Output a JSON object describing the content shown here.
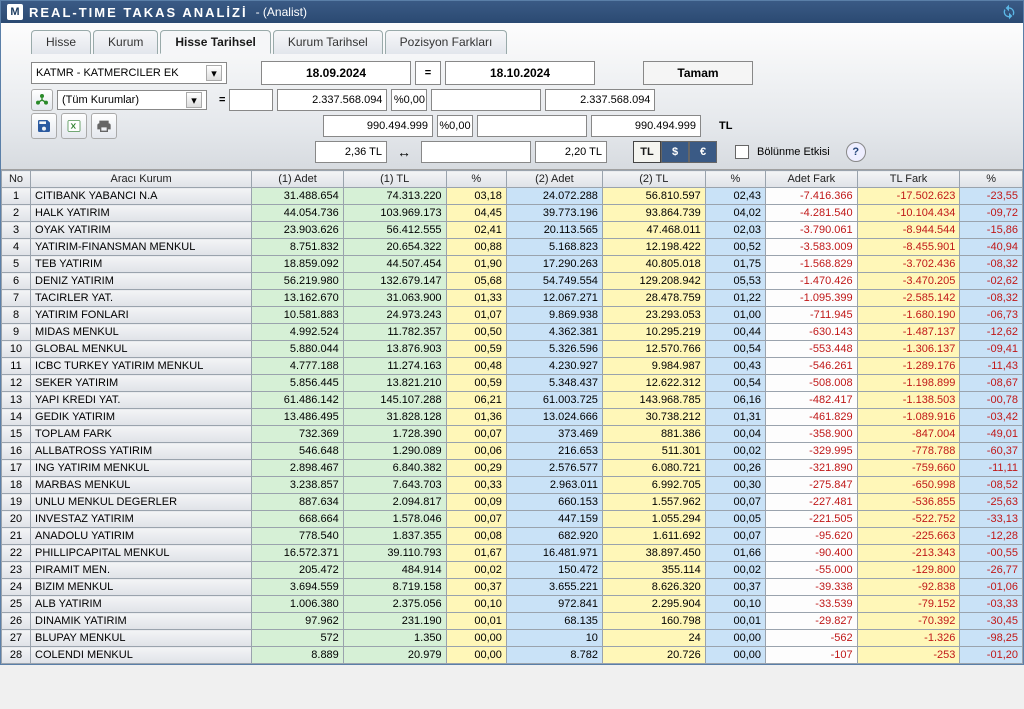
{
  "window": {
    "appLetter": "M",
    "title": "REAL-TIME TAKAS ANALİZİ",
    "subtitle": "- (Analist)"
  },
  "tabs": [
    {
      "label": "Hisse",
      "active": false
    },
    {
      "label": "Kurum",
      "active": false
    },
    {
      "label": "Hisse Tarihsel",
      "active": true
    },
    {
      "label": "Kurum Tarihsel",
      "active": false
    },
    {
      "label": "Pozisyon Farkları",
      "active": false
    }
  ],
  "filters": {
    "symbol": "KATMR - KATMERCILER EK",
    "dateFrom": "18.09.2024",
    "dateTo": "18.10.2024",
    "eq": "=",
    "okLabel": "Tamam",
    "allBrokers": "(Tüm Kurumlar)",
    "eq2": "=",
    "row2_val1": "2.337.568.094",
    "row2_pct1": "%0,00",
    "row2_val2": "2.337.568.094",
    "row3_val1": "990.494.999",
    "row3_pct1": "%0,00",
    "row3_val2": "990.494.999",
    "tlLabel": "TL",
    "tlPrice1": "2,36 TL",
    "tlPrice2": "2,20 TL",
    "splitLabel": "Bölünme Etkisi",
    "ccy": [
      "TL",
      "$",
      "€"
    ]
  },
  "columns": [
    "No",
    "Aracı Kurum",
    "(1) Adet",
    "(1) TL",
    "%",
    "(2) Adet",
    "(2) TL",
    "%",
    "Adet Fark",
    "TL Fark",
    "%"
  ],
  "cellColors": {
    "adet1": "#d6f0d6",
    "tl1": "#d6f0d6",
    "pct1": "#fff7b8",
    "adet2": "#c9e2f7",
    "tl2": "#fff7b8",
    "pct2": "#c9e2f7",
    "fark": "#fdfdfd",
    "tlfark": "#fff7b8",
    "pctf": "#c9e2f7"
  },
  "rows": [
    {
      "no": 1,
      "name": "CITIBANK YABANCI N.A",
      "adet1": "31.488.654",
      "tl1": "74.313.220",
      "pct1": "03,18",
      "adet2": "24.072.288",
      "tl2": "56.810.597",
      "pct2": "02,43",
      "fark": "-7.416.366",
      "tlfark": "-17.502.623",
      "pctf": "-23,55"
    },
    {
      "no": 2,
      "name": "HALK YATIRIM",
      "adet1": "44.054.736",
      "tl1": "103.969.173",
      "pct1": "04,45",
      "adet2": "39.773.196",
      "tl2": "93.864.739",
      "pct2": "04,02",
      "fark": "-4.281.540",
      "tlfark": "-10.104.434",
      "pctf": "-09,72"
    },
    {
      "no": 3,
      "name": "OYAK YATIRIM",
      "adet1": "23.903.626",
      "tl1": "56.412.555",
      "pct1": "02,41",
      "adet2": "20.113.565",
      "tl2": "47.468.011",
      "pct2": "02,03",
      "fark": "-3.790.061",
      "tlfark": "-8.944.544",
      "pctf": "-15,86"
    },
    {
      "no": 4,
      "name": "YATIRIM-FINANSMAN MENKUL",
      "adet1": "8.751.832",
      "tl1": "20.654.322",
      "pct1": "00,88",
      "adet2": "5.168.823",
      "tl2": "12.198.422",
      "pct2": "00,52",
      "fark": "-3.583.009",
      "tlfark": "-8.455.901",
      "pctf": "-40,94"
    },
    {
      "no": 5,
      "name": "TEB YATIRIM",
      "adet1": "18.859.092",
      "tl1": "44.507.454",
      "pct1": "01,90",
      "adet2": "17.290.263",
      "tl2": "40.805.018",
      "pct2": "01,75",
      "fark": "-1.568.829",
      "tlfark": "-3.702.436",
      "pctf": "-08,32"
    },
    {
      "no": 6,
      "name": "DENIZ YATIRIM",
      "adet1": "56.219.980",
      "tl1": "132.679.147",
      "pct1": "05,68",
      "adet2": "54.749.554",
      "tl2": "129.208.942",
      "pct2": "05,53",
      "fark": "-1.470.426",
      "tlfark": "-3.470.205",
      "pctf": "-02,62"
    },
    {
      "no": 7,
      "name": "TACIRLER YAT.",
      "adet1": "13.162.670",
      "tl1": "31.063.900",
      "pct1": "01,33",
      "adet2": "12.067.271",
      "tl2": "28.478.759",
      "pct2": "01,22",
      "fark": "-1.095.399",
      "tlfark": "-2.585.142",
      "pctf": "-08,32"
    },
    {
      "no": 8,
      "name": "YATIRIM FONLARI",
      "adet1": "10.581.883",
      "tl1": "24.973.243",
      "pct1": "01,07",
      "adet2": "9.869.938",
      "tl2": "23.293.053",
      "pct2": "01,00",
      "fark": "-711.945",
      "tlfark": "-1.680.190",
      "pctf": "-06,73"
    },
    {
      "no": 9,
      "name": "MIDAS MENKUL",
      "adet1": "4.992.524",
      "tl1": "11.782.357",
      "pct1": "00,50",
      "adet2": "4.362.381",
      "tl2": "10.295.219",
      "pct2": "00,44",
      "fark": "-630.143",
      "tlfark": "-1.487.137",
      "pctf": "-12,62"
    },
    {
      "no": 10,
      "name": "GLOBAL MENKUL",
      "adet1": "5.880.044",
      "tl1": "13.876.903",
      "pct1": "00,59",
      "adet2": "5.326.596",
      "tl2": "12.570.766",
      "pct2": "00,54",
      "fark": "-553.448",
      "tlfark": "-1.306.137",
      "pctf": "-09,41"
    },
    {
      "no": 11,
      "name": "ICBC TURKEY YATIRIM MENKUL",
      "adet1": "4.777.188",
      "tl1": "11.274.163",
      "pct1": "00,48",
      "adet2": "4.230.927",
      "tl2": "9.984.987",
      "pct2": "00,43",
      "fark": "-546.261",
      "tlfark": "-1.289.176",
      "pctf": "-11,43"
    },
    {
      "no": 12,
      "name": "SEKER YATIRIM",
      "adet1": "5.856.445",
      "tl1": "13.821.210",
      "pct1": "00,59",
      "adet2": "5.348.437",
      "tl2": "12.622.312",
      "pct2": "00,54",
      "fark": "-508.008",
      "tlfark": "-1.198.899",
      "pctf": "-08,67"
    },
    {
      "no": 13,
      "name": "YAPI KREDI YAT.",
      "adet1": "61.486.142",
      "tl1": "145.107.288",
      "pct1": "06,21",
      "adet2": "61.003.725",
      "tl2": "143.968.785",
      "pct2": "06,16",
      "fark": "-482.417",
      "tlfark": "-1.138.503",
      "pctf": "-00,78"
    },
    {
      "no": 14,
      "name": "GEDIK YATIRIM",
      "adet1": "13.486.495",
      "tl1": "31.828.128",
      "pct1": "01,36",
      "adet2": "13.024.666",
      "tl2": "30.738.212",
      "pct2": "01,31",
      "fark": "-461.829",
      "tlfark": "-1.089.916",
      "pctf": "-03,42"
    },
    {
      "no": 15,
      "name": "TOPLAM FARK",
      "adet1": "732.369",
      "tl1": "1.728.390",
      "pct1": "00,07",
      "adet2": "373.469",
      "tl2": "881.386",
      "pct2": "00,04",
      "fark": "-358.900",
      "tlfark": "-847.004",
      "pctf": "-49,01"
    },
    {
      "no": 16,
      "name": "ALLBATROSS YATIRIM",
      "adet1": "546.648",
      "tl1": "1.290.089",
      "pct1": "00,06",
      "adet2": "216.653",
      "tl2": "511.301",
      "pct2": "00,02",
      "fark": "-329.995",
      "tlfark": "-778.788",
      "pctf": "-60,37"
    },
    {
      "no": 17,
      "name": "ING YATIRIM MENKUL",
      "adet1": "2.898.467",
      "tl1": "6.840.382",
      "pct1": "00,29",
      "adet2": "2.576.577",
      "tl2": "6.080.721",
      "pct2": "00,26",
      "fark": "-321.890",
      "tlfark": "-759.660",
      "pctf": "-11,11"
    },
    {
      "no": 18,
      "name": "MARBAS MENKUL",
      "adet1": "3.238.857",
      "tl1": "7.643.703",
      "pct1": "00,33",
      "adet2": "2.963.011",
      "tl2": "6.992.705",
      "pct2": "00,30",
      "fark": "-275.847",
      "tlfark": "-650.998",
      "pctf": "-08,52"
    },
    {
      "no": 19,
      "name": "UNLU MENKUL DEGERLER",
      "adet1": "887.634",
      "tl1": "2.094.817",
      "pct1": "00,09",
      "adet2": "660.153",
      "tl2": "1.557.962",
      "pct2": "00,07",
      "fark": "-227.481",
      "tlfark": "-536.855",
      "pctf": "-25,63"
    },
    {
      "no": 20,
      "name": "INVESTAZ YATIRIM",
      "adet1": "668.664",
      "tl1": "1.578.046",
      "pct1": "00,07",
      "adet2": "447.159",
      "tl2": "1.055.294",
      "pct2": "00,05",
      "fark": "-221.505",
      "tlfark": "-522.752",
      "pctf": "-33,13"
    },
    {
      "no": 21,
      "name": "ANADOLU YATIRIM",
      "adet1": "778.540",
      "tl1": "1.837.355",
      "pct1": "00,08",
      "adet2": "682.920",
      "tl2": "1.611.692",
      "pct2": "00,07",
      "fark": "-95.620",
      "tlfark": "-225.663",
      "pctf": "-12,28"
    },
    {
      "no": 22,
      "name": "PHILLIPCAPITAL MENKUL",
      "adet1": "16.572.371",
      "tl1": "39.110.793",
      "pct1": "01,67",
      "adet2": "16.481.971",
      "tl2": "38.897.450",
      "pct2": "01,66",
      "fark": "-90.400",
      "tlfark": "-213.343",
      "pctf": "-00,55"
    },
    {
      "no": 23,
      "name": "PIRAMIT MEN.",
      "adet1": "205.472",
      "tl1": "484.914",
      "pct1": "00,02",
      "adet2": "150.472",
      "tl2": "355.114",
      "pct2": "00,02",
      "fark": "-55.000",
      "tlfark": "-129.800",
      "pctf": "-26,77"
    },
    {
      "no": 24,
      "name": "BIZIM MENKUL",
      "adet1": "3.694.559",
      "tl1": "8.719.158",
      "pct1": "00,37",
      "adet2": "3.655.221",
      "tl2": "8.626.320",
      "pct2": "00,37",
      "fark": "-39.338",
      "tlfark": "-92.838",
      "pctf": "-01,06"
    },
    {
      "no": 25,
      "name": "ALB YATIRIM",
      "adet1": "1.006.380",
      "tl1": "2.375.056",
      "pct1": "00,10",
      "adet2": "972.841",
      "tl2": "2.295.904",
      "pct2": "00,10",
      "fark": "-33.539",
      "tlfark": "-79.152",
      "pctf": "-03,33"
    },
    {
      "no": 26,
      "name": "DINAMIK YATIRIM",
      "adet1": "97.962",
      "tl1": "231.190",
      "pct1": "00,01",
      "adet2": "68.135",
      "tl2": "160.798",
      "pct2": "00,01",
      "fark": "-29.827",
      "tlfark": "-70.392",
      "pctf": "-30,45"
    },
    {
      "no": 27,
      "name": "BLUPAY MENKUL",
      "adet1": "572",
      "tl1": "1.350",
      "pct1": "00,00",
      "adet2": "10",
      "tl2": "24",
      "pct2": "00,00",
      "fark": "-562",
      "tlfark": "-1.326",
      "pctf": "-98,25"
    },
    {
      "no": 28,
      "name": "COLENDI MENKUL",
      "adet1": "8.889",
      "tl1": "20.979",
      "pct1": "00,00",
      "adet2": "8.782",
      "tl2": "20.726",
      "pct2": "00,00",
      "fark": "-107",
      "tlfark": "-253",
      "pctf": "-01,20"
    }
  ]
}
